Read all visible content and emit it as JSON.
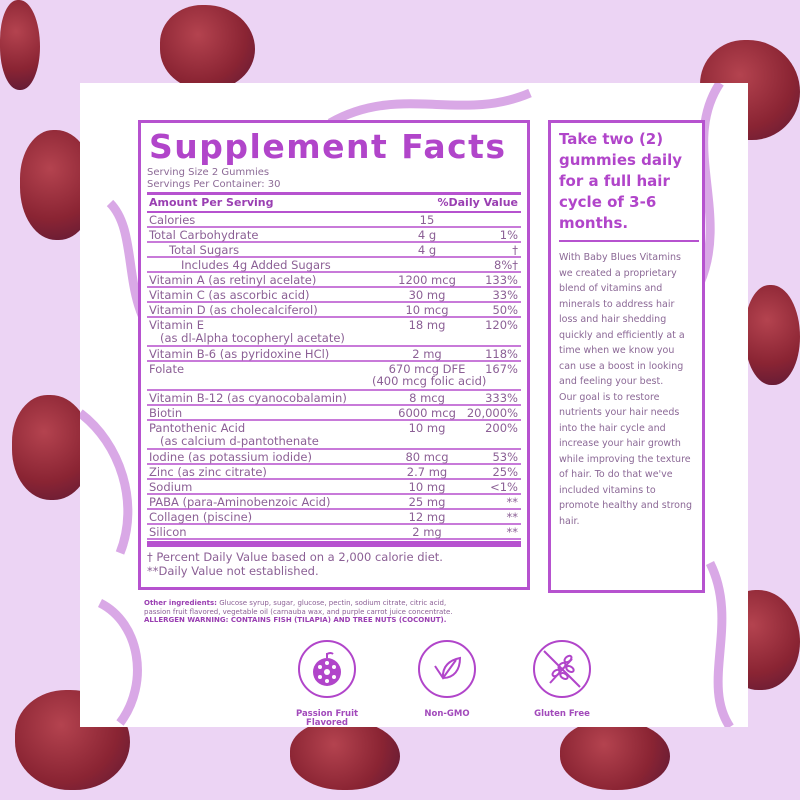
{
  "title": "Supplement Facts",
  "serving_size": "Serving Size 2 Gummies",
  "servings_per_container": "Servings Per Container: 30",
  "header": {
    "amount": "Amount Per Serving",
    "dv": "%Daily Value"
  },
  "rows": [
    {
      "name": "Calories",
      "amount": "15",
      "dv": "",
      "indent": 0
    },
    {
      "name": "Total Carbohydrate",
      "amount": "4 g",
      "dv": "1%",
      "indent": 0
    },
    {
      "name": "Total Sugars",
      "amount": "4 g",
      "dv": "†",
      "indent": 1
    },
    {
      "name": "Includes 4g Added Sugars",
      "amount": "",
      "dv": "8%†",
      "indent": 2
    },
    {
      "name": "Vitamin A (as retinyl acelate)",
      "amount": "1200 mcg",
      "dv": "133%",
      "indent": 0
    },
    {
      "name": "Vitamin C (as ascorbic acid)",
      "amount": "30 mg",
      "dv": "33%",
      "indent": 0
    },
    {
      "name": "Vitamin D (as cholecalciferol)",
      "amount": "10 mcg",
      "dv": "50%",
      "indent": 0
    },
    {
      "name": "Vitamin E\n   (as dl-Alpha tocopheryl acetate)",
      "amount": "18 mg",
      "dv": "120%",
      "indent": 0,
      "two": true
    },
    {
      "name": "Vitamin B-6 (as pyridoxine HCl)",
      "amount": "2 mg",
      "dv": "118%",
      "indent": 0
    },
    {
      "name": "Folate",
      "amount": "670 mcg DFE\n(400 mcg folic acid)",
      "dv": "167%",
      "indent": 0,
      "two": true
    },
    {
      "name": "Vitamin B-12 (as cyanocobalamin)",
      "amount": "8 mcg",
      "dv": "333%",
      "indent": 0
    },
    {
      "name": "Biotin",
      "amount": "6000 mcg",
      "dv": "20,000%",
      "indent": 0
    },
    {
      "name": "Pantothenic Acid\n   (as calcium d-pantothenate",
      "amount": "10 mg",
      "dv": "200%",
      "indent": 0,
      "two": true
    },
    {
      "name": "Iodine (as potassium iodide)",
      "amount": "80 mcg",
      "dv": "53%",
      "indent": 0
    },
    {
      "name": "Zinc (as zinc citrate)",
      "amount": "2.7 mg",
      "dv": "25%",
      "indent": 0
    },
    {
      "name": "Sodium",
      "amount": "10 mg",
      "dv": "<1%",
      "indent": 0
    },
    {
      "name": "PABA (para-Aminobenzoic Acid)",
      "amount": "25 mg",
      "dv": "**",
      "indent": 0
    },
    {
      "name": "Collagen (piscine)",
      "amount": "12 mg",
      "dv": "**",
      "indent": 0
    },
    {
      "name": "Silicon",
      "amount": "2 mg",
      "dv": "**",
      "indent": 0
    }
  ],
  "footnote1": "† Percent Daily Value based on a 2,000 calorie diet.",
  "footnote2": "**Daily Value not established.",
  "other_label": "Other ingredients:",
  "other_text": " Glucose syrup, sugar, glucose, pectin, sodium citrate, citric acid, passion fruit flavored, vegetable oil (carnauba wax, and purple carrot juice concentrate.",
  "allergen": "ALLERGEN WARNING: CONTAINS FISH (TILAPIA) AND TREE NUTS (COCONUT).",
  "side": {
    "heading": "Take two (2) gummies daily for a full hair cycle of 3-6 months.",
    "body1": "With Baby Blues Vitamins we created a proprietary blend of vitamins and minerals to address hair loss and hair shedding quickly and efficiently at a time when we know you can use a boost in looking and feeling your best.",
    "body2": "Our goal is to restore nutrients your hair needs into the hair cycle and increase your hair growth while improving the texture of hair. To do that we've included vitamins to promote healthy and strong hair."
  },
  "badges": [
    {
      "label": "Passion Fruit Flavored",
      "icon": "passion-fruit-icon"
    },
    {
      "label": "Non-GMO",
      "icon": "leaf-icon"
    },
    {
      "label": "Gluten Free",
      "icon": "no-wheat-icon"
    }
  ],
  "colors": {
    "accent": "#b145ca",
    "background": "#ecd4f4",
    "gummy": "#8a2433"
  }
}
